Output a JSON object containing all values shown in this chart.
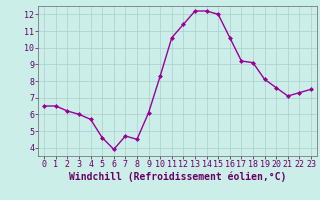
{
  "x": [
    0,
    1,
    2,
    3,
    4,
    5,
    6,
    7,
    8,
    9,
    10,
    11,
    12,
    13,
    14,
    15,
    16,
    17,
    18,
    19,
    20,
    21,
    22,
    23
  ],
  "y": [
    6.5,
    6.5,
    6.2,
    6.0,
    5.7,
    4.6,
    3.9,
    4.7,
    4.5,
    6.1,
    8.3,
    10.6,
    11.4,
    12.2,
    12.2,
    12.0,
    10.6,
    9.2,
    9.1,
    8.1,
    7.6,
    7.1,
    7.3,
    7.5
  ],
  "line_color": "#990099",
  "marker": "D",
  "marker_size": 2,
  "xlabel": "Windchill (Refroidissement éolien,°C)",
  "xlabel_fontsize": 7,
  "ylim": [
    3.5,
    12.5
  ],
  "xlim": [
    -0.5,
    23.5
  ],
  "yticks": [
    4,
    5,
    6,
    7,
    8,
    9,
    10,
    11,
    12
  ],
  "xticks": [
    0,
    1,
    2,
    3,
    4,
    5,
    6,
    7,
    8,
    9,
    10,
    11,
    12,
    13,
    14,
    15,
    16,
    17,
    18,
    19,
    20,
    21,
    22,
    23
  ],
  "bg_color": "#cceee8",
  "grid_color": "#aacccc",
  "tick_fontsize": 6,
  "line_width": 1.0,
  "spine_color": "#666666"
}
